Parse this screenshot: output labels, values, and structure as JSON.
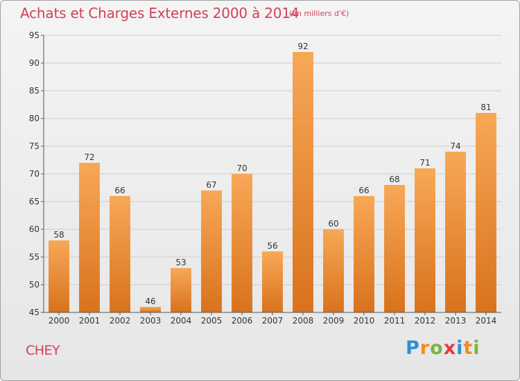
{
  "title": "Achats et Charges Externes 2000 à 2014",
  "unit": "(en milliers d'€)",
  "place": "CHEY",
  "brand": {
    "letters": [
      "P",
      "r",
      "o",
      "x",
      "i",
      "t",
      "i"
    ],
    "colors": [
      "#2e8fd0",
      "#f28c1e",
      "#7cb342",
      "#e53935",
      "#2e8fd0",
      "#f28c1e",
      "#7cb342"
    ]
  },
  "colors": {
    "bar_top": "#f7a857",
    "bar_bottom": "#d9721c",
    "title": "#d1405a",
    "grid": "#cccccc"
  },
  "chart_data": {
    "type": "bar",
    "categories": [
      "2000",
      "2001",
      "2002",
      "2003",
      "2004",
      "2005",
      "2006",
      "2007",
      "2008",
      "2009",
      "2010",
      "2011",
      "2012",
      "2013",
      "2014"
    ],
    "values": [
      58,
      72,
      66,
      46,
      53,
      67,
      70,
      56,
      92,
      60,
      66,
      68,
      71,
      74,
      81
    ],
    "ylim": [
      45,
      95
    ],
    "yticks": [
      45,
      50,
      55,
      60,
      65,
      70,
      75,
      80,
      85,
      90,
      95
    ],
    "grid": true,
    "xlabel": "",
    "ylabel": ""
  }
}
